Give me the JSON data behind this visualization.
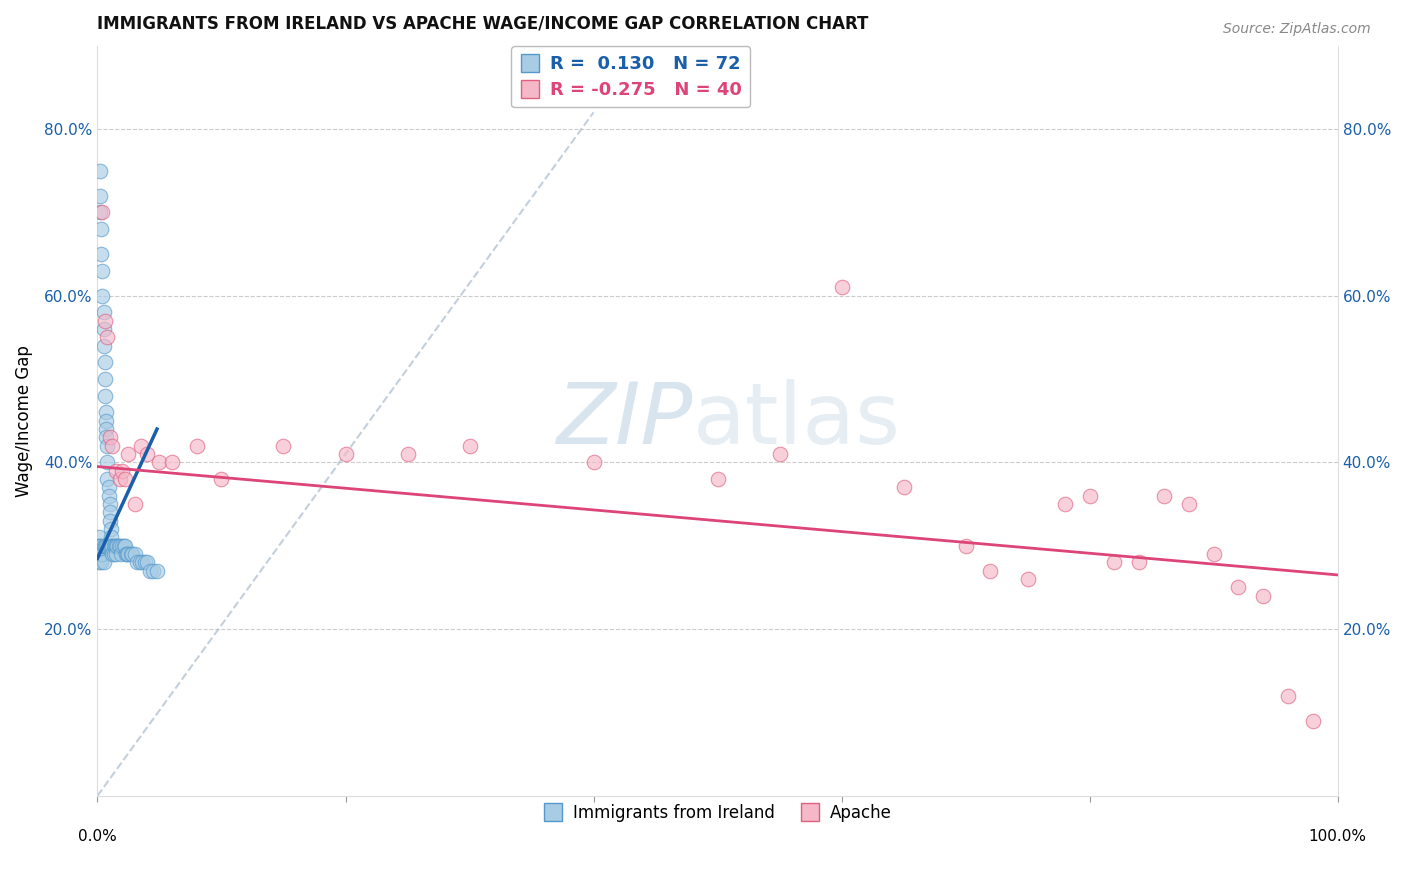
{
  "title": "IMMIGRANTS FROM IRELAND VS APACHE WAGE/INCOME GAP CORRELATION CHART",
  "source": "Source: ZipAtlas.com",
  "ylabel": "Wage/Income Gap",
  "yticks": [
    0.2,
    0.4,
    0.6,
    0.8
  ],
  "ytick_labels": [
    "20.0%",
    "40.0%",
    "60.0%",
    "80.0%"
  ],
  "xlim": [
    0.0,
    1.0
  ],
  "ylim": [
    0.0,
    0.9
  ],
  "blue_color": "#a8cce4",
  "pink_color": "#f4b8c8",
  "blue_edge_color": "#5599cc",
  "pink_edge_color": "#e06080",
  "blue_line_color": "#1a5faa",
  "pink_line_color": "#dd4477",
  "watermark_zip": "ZIP",
  "watermark_atlas": "atlas",
  "blue_scatter_x": [
    0.001,
    0.001,
    0.001,
    0.001,
    0.002,
    0.002,
    0.002,
    0.002,
    0.002,
    0.003,
    0.003,
    0.003,
    0.003,
    0.004,
    0.004,
    0.004,
    0.005,
    0.005,
    0.005,
    0.005,
    0.005,
    0.006,
    0.006,
    0.006,
    0.006,
    0.007,
    0.007,
    0.007,
    0.007,
    0.007,
    0.008,
    0.008,
    0.008,
    0.008,
    0.009,
    0.009,
    0.009,
    0.01,
    0.01,
    0.01,
    0.01,
    0.011,
    0.011,
    0.011,
    0.012,
    0.012,
    0.013,
    0.013,
    0.014,
    0.015,
    0.015,
    0.016,
    0.017,
    0.018,
    0.019,
    0.02,
    0.021,
    0.022,
    0.023,
    0.024,
    0.025,
    0.027,
    0.028,
    0.03,
    0.032,
    0.034,
    0.036,
    0.038,
    0.04,
    0.042,
    0.045,
    0.048
  ],
  "blue_scatter_y": [
    0.31,
    0.3,
    0.29,
    0.28,
    0.75,
    0.72,
    0.7,
    0.3,
    0.29,
    0.68,
    0.65,
    0.3,
    0.28,
    0.63,
    0.6,
    0.29,
    0.58,
    0.56,
    0.54,
    0.3,
    0.28,
    0.52,
    0.5,
    0.48,
    0.3,
    0.46,
    0.45,
    0.44,
    0.43,
    0.3,
    0.42,
    0.4,
    0.38,
    0.3,
    0.37,
    0.36,
    0.3,
    0.35,
    0.34,
    0.33,
    0.3,
    0.32,
    0.31,
    0.3,
    0.3,
    0.29,
    0.3,
    0.29,
    0.3,
    0.3,
    0.29,
    0.3,
    0.3,
    0.3,
    0.29,
    0.3,
    0.3,
    0.3,
    0.29,
    0.29,
    0.29,
    0.29,
    0.29,
    0.29,
    0.28,
    0.28,
    0.28,
    0.28,
    0.28,
    0.27,
    0.27,
    0.27
  ],
  "pink_scatter_x": [
    0.004,
    0.006,
    0.008,
    0.01,
    0.012,
    0.015,
    0.018,
    0.02,
    0.022,
    0.025,
    0.03,
    0.035,
    0.04,
    0.05,
    0.06,
    0.08,
    0.1,
    0.15,
    0.2,
    0.25,
    0.3,
    0.4,
    0.5,
    0.55,
    0.6,
    0.65,
    0.7,
    0.72,
    0.75,
    0.78,
    0.8,
    0.82,
    0.84,
    0.86,
    0.88,
    0.9,
    0.92,
    0.94,
    0.96,
    0.98
  ],
  "pink_scatter_y": [
    0.7,
    0.57,
    0.55,
    0.43,
    0.42,
    0.39,
    0.38,
    0.39,
    0.38,
    0.41,
    0.35,
    0.42,
    0.41,
    0.4,
    0.4,
    0.42,
    0.38,
    0.42,
    0.41,
    0.41,
    0.42,
    0.4,
    0.38,
    0.41,
    0.61,
    0.37,
    0.3,
    0.27,
    0.26,
    0.35,
    0.36,
    0.28,
    0.28,
    0.36,
    0.35,
    0.29,
    0.25,
    0.24,
    0.12,
    0.09
  ],
  "blue_line_x": [
    0.0,
    0.048
  ],
  "blue_line_y_start": 0.285,
  "blue_line_y_end": 0.44,
  "pink_line_x": [
    0.0,
    1.0
  ],
  "pink_line_y_start": 0.395,
  "pink_line_y_end": 0.265,
  "diag_line_x": [
    0.0,
    0.4
  ],
  "diag_line_y": [
    0.0,
    0.82
  ]
}
